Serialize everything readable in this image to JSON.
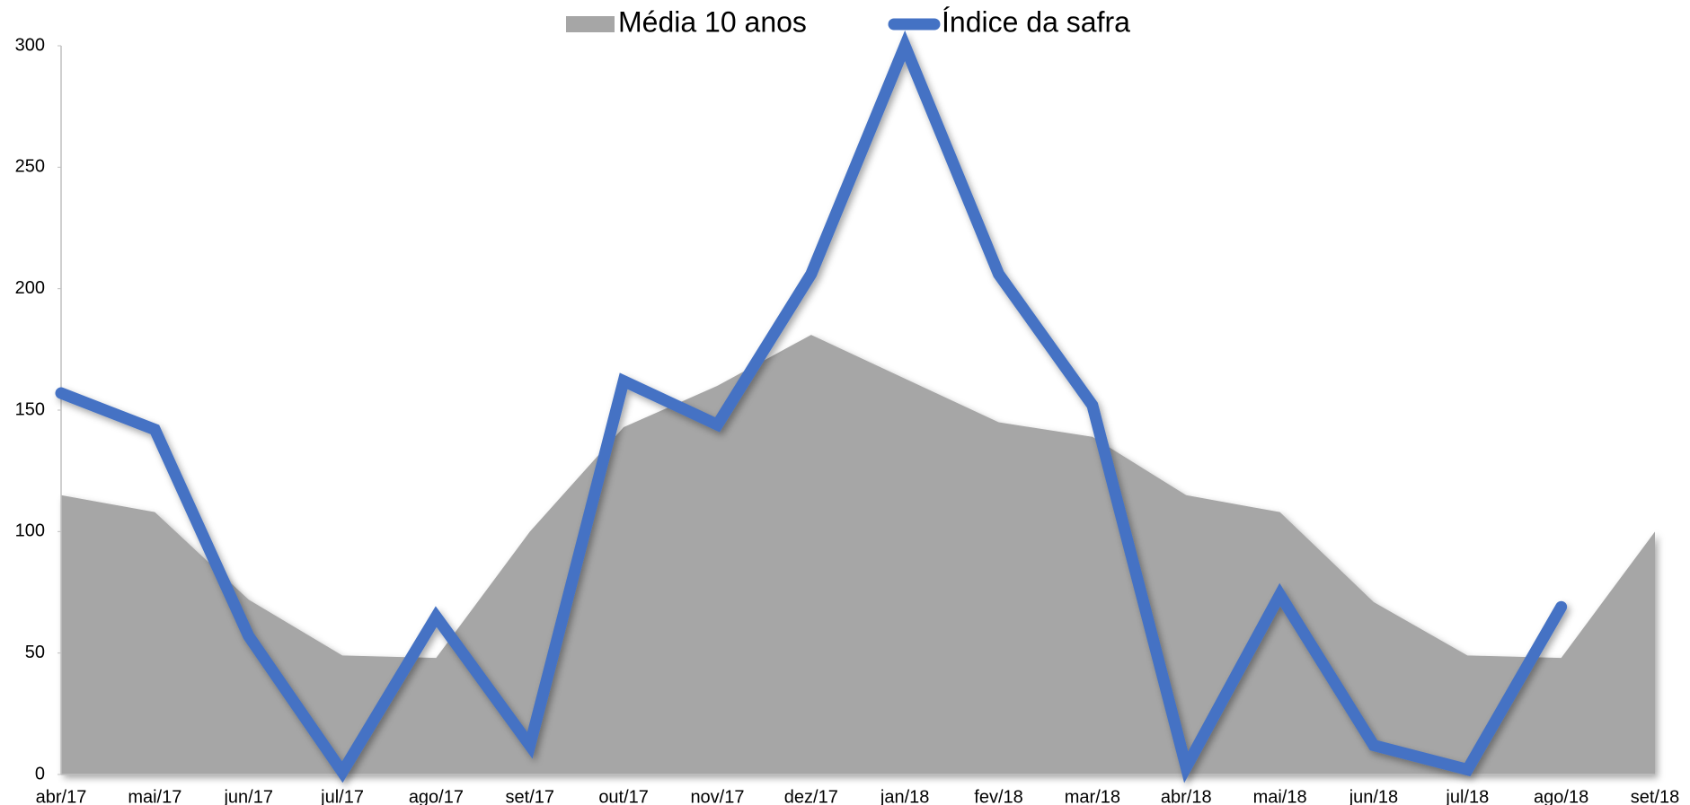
{
  "chart_data": {
    "type": "line",
    "categories": [
      "abr/17",
      "mai/17",
      "jun/17",
      "jul/17",
      "ago/17",
      "set/17",
      "out/17",
      "nov/17",
      "dez/17",
      "jan/18",
      "fev/18",
      "mar/18",
      "abr/18",
      "mai/18",
      "jun/18",
      "jul/18",
      "ago/18",
      "set/18"
    ],
    "series": [
      {
        "name": "Média 10 anos",
        "type": "area",
        "color": "#a6a6a6",
        "values": [
          115,
          108,
          72,
          49,
          48,
          100,
          143,
          160,
          181,
          163,
          145,
          139,
          115,
          108,
          71,
          49,
          48,
          100
        ]
      },
      {
        "name": "Índice da safra",
        "type": "line",
        "color": "#4472c4",
        "values": [
          157,
          142,
          57,
          1,
          65,
          12,
          162,
          144,
          206,
          300,
          206,
          152,
          3,
          74,
          12,
          2,
          69,
          null
        ]
      }
    ],
    "ylim": [
      0,
      300
    ],
    "yticks": [
      0,
      50,
      100,
      150,
      200,
      250,
      300
    ],
    "grid": false,
    "legend": "top"
  }
}
